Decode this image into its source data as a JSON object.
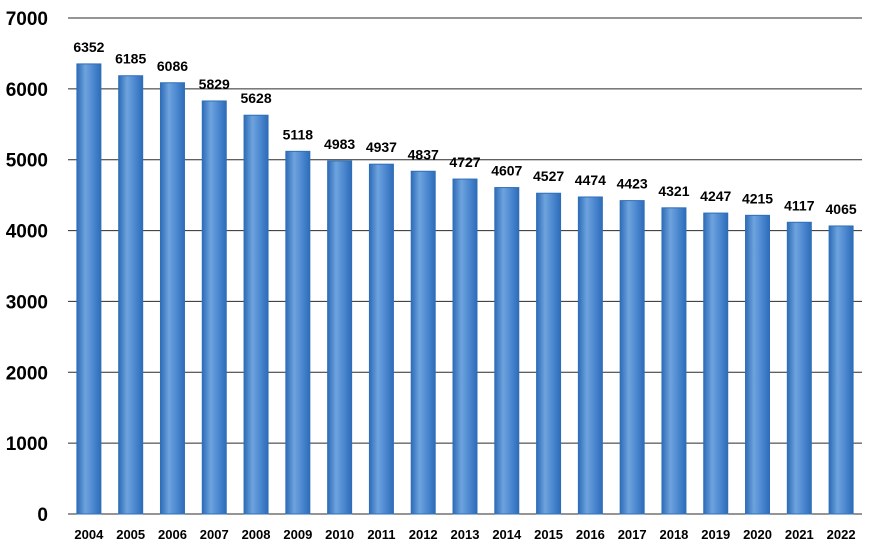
{
  "chart_data": {
    "type": "bar",
    "title": "",
    "xlabel": "",
    "ylabel": "",
    "categories": [
      "2004",
      "2005",
      "2006",
      "2007",
      "2008",
      "2009",
      "2010",
      "2011",
      "2012",
      "2013",
      "2014",
      "2015",
      "2016",
      "2017",
      "2018",
      "2019",
      "2020",
      "2021",
      "2022"
    ],
    "values": [
      6352,
      6185,
      6086,
      5829,
      5628,
      5118,
      4983,
      4937,
      4837,
      4727,
      4607,
      4527,
      4474,
      4423,
      4321,
      4247,
      4215,
      4117,
      4065
    ],
    "data_labels": [
      "6352",
      "6185",
      "6086",
      "5829",
      "5628",
      "5118",
      "4983",
      "4937",
      "4837",
      "4727",
      "4607",
      "4527",
      "4474",
      "4423",
      "4321",
      "4247",
      "4215",
      "4117",
      "4065"
    ],
    "ylim": [
      0,
      7000
    ],
    "y_ticks": [
      "0",
      "1000",
      "2000",
      "3000",
      "4000",
      "5000",
      "6000",
      "7000"
    ],
    "y_tick_values": [
      0,
      1000,
      2000,
      3000,
      4000,
      5000,
      6000,
      7000
    ],
    "grid": true,
    "legend": "none",
    "colors": {
      "bar_light": "#6ea3dd",
      "bar_mid": "#4a86cf",
      "bar_dark": "#2e6cb8",
      "grid": "#2b2b2b"
    }
  }
}
